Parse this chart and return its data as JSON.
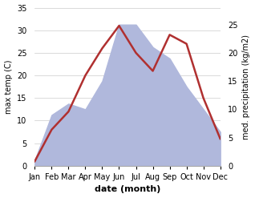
{
  "months": [
    "Jan",
    "Feb",
    "Mar",
    "Apr",
    "May",
    "Jun",
    "Jul",
    "Aug",
    "Sep",
    "Oct",
    "Nov",
    "Dec"
  ],
  "temp": [
    1,
    8,
    12,
    20,
    26,
    31,
    25,
    21,
    29,
    27,
    15,
    6
  ],
  "precip": [
    1,
    9,
    11,
    10,
    15,
    25,
    25,
    21,
    19,
    14,
    10,
    6
  ],
  "temp_color": "#b03030",
  "precip_color_fill": "#b0b8dc",
  "xlabel": "date (month)",
  "ylabel_left": "max temp (C)",
  "ylabel_right": "med. precipitation (kg/m2)",
  "ylim_left": [
    0,
    35
  ],
  "ylim_right": [
    0,
    28
  ],
  "yticks_left": [
    0,
    5,
    10,
    15,
    20,
    25,
    30,
    35
  ],
  "yticks_right": [
    0,
    5,
    10,
    15,
    20,
    25
  ],
  "precip_scale_max": 28,
  "temp_scale_max": 35,
  "bg_color": "#ffffff",
  "figsize": [
    3.18,
    2.47
  ],
  "dpi": 100
}
